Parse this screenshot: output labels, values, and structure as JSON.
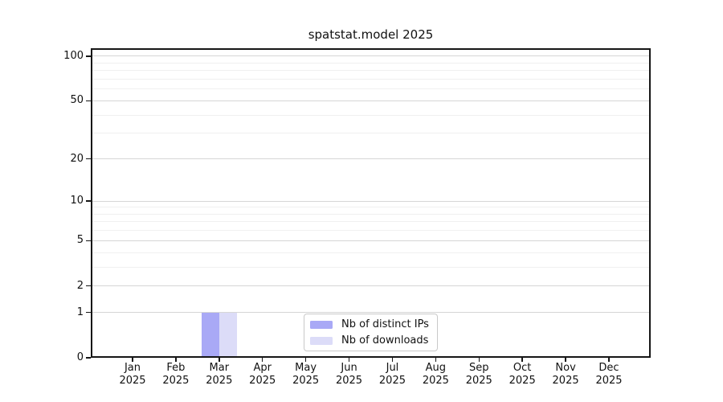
{
  "chart_data": {
    "type": "bar",
    "title": "spatstat.model 2025",
    "scale": "log1p",
    "grid": "horizontal",
    "legend_position": "lower center",
    "xlabel": "",
    "ylabel": "",
    "ylim": [
      0,
      113
    ],
    "yticks": [
      0,
      1,
      2,
      5,
      10,
      20,
      50,
      100
    ],
    "y_minor_gridlines": [
      3,
      4,
      6,
      7,
      8,
      9,
      30,
      40,
      60,
      70,
      80,
      90
    ],
    "categories": [
      "Jan 2025",
      "Feb 2025",
      "Mar 2025",
      "Apr 2025",
      "May 2025",
      "Jun 2025",
      "Jul 2025",
      "Aug 2025",
      "Sep 2025",
      "Oct 2025",
      "Nov 2025",
      "Dec 2025"
    ],
    "series": [
      {
        "name": "Nb of distinct IPs",
        "color": "#a9a9f6",
        "values": [
          0,
          0,
          1,
          0,
          0,
          0,
          0,
          0,
          0,
          0,
          0,
          0
        ]
      },
      {
        "name": "Nb of downloads",
        "color": "#dcdcf8",
        "values": [
          0,
          0,
          1,
          0,
          0,
          0,
          0,
          0,
          0,
          0,
          0,
          0
        ]
      }
    ]
  },
  "colors": {
    "background": "#ffffff",
    "axis": "#161616",
    "text": "#111111",
    "grid_major": "#d6d6d6",
    "grid_minor": "#f0f0f0",
    "legend_border": "#c9c9c9"
  }
}
